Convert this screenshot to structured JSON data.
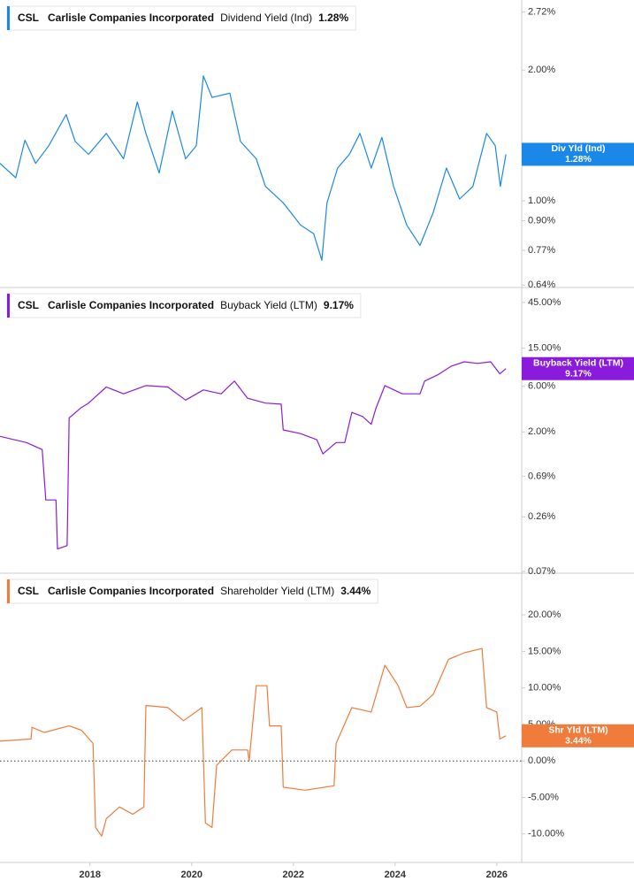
{
  "chart_data": [
    {
      "type": "line",
      "ticker": "CSL",
      "company": "Carlisle Companies Incorporated",
      "last_value": "1.28%",
      "tag_label": "Div Yld (Ind)",
      "tag_value": "1.28%",
      "log_scale": true,
      "xlim": [
        2016.23,
        2026.49
      ],
      "ylim": [
        0.632,
        2.9
      ],
      "yticks": [
        {
          "value": 0.64,
          "label": "0.64%"
        },
        {
          "value": 0.77,
          "label": "0.77%"
        },
        {
          "value": 0.9,
          "label": "0.90%"
        },
        {
          "value": 1,
          "label": "1.00%"
        },
        {
          "value": 2,
          "label": "2.00%"
        },
        {
          "value": 2.72,
          "label": "2.72%"
        }
      ],
      "x": [
        2016.23,
        2016.54,
        2016.72,
        2016.93,
        2017.19,
        2017.53,
        2017.71,
        2017.97,
        2018.32,
        2018.66,
        2018.93,
        2019.1,
        2019.36,
        2019.62,
        2019.88,
        2020.09,
        2020.23,
        2020.4,
        2020.75,
        2020.96,
        2021.27,
        2021.45,
        2021.8,
        2022.14,
        2022.4,
        2022.56,
        2022.66,
        2022.87,
        2023.1,
        2023.31,
        2023.53,
        2023.74,
        2023.97,
        2024.23,
        2024.49,
        2024.75,
        2025.01,
        2025.27,
        2025.53,
        2025.8,
        2025.97,
        2026.07,
        2026.18
      ],
      "series": [
        {
          "name": "Dividend Yield (Ind)",
          "color": "#1a88e8",
          "values": [
            1.22,
            1.13,
            1.38,
            1.22,
            1.34,
            1.58,
            1.37,
            1.28,
            1.43,
            1.25,
            1.69,
            1.43,
            1.16,
            1.61,
            1.25,
            1.34,
            1.94,
            1.73,
            1.77,
            1.37,
            1.25,
            1.08,
            0.99,
            0.88,
            0.84,
            0.73,
            0.99,
            1.19,
            1.28,
            1.43,
            1.19,
            1.4,
            1.08,
            0.88,
            0.79,
            0.94,
            1.19,
            1.01,
            1.08,
            1.43,
            1.34,
            1.08,
            1.28
          ]
        }
      ]
    },
    {
      "type": "line",
      "ticker": "CSL",
      "company": "Carlisle Companies Incorporated",
      "last_value": "9.17%",
      "tag_label": "Buyback Yield (LTM)",
      "tag_value": "9.17%",
      "log_scale": true,
      "xlim": [
        2016.23,
        2026.49
      ],
      "ylim": [
        0.067,
        64.5
      ],
      "yticks": [
        {
          "value": 0.07,
          "label": "0.07%"
        },
        {
          "value": 0.26,
          "label": "0.26%"
        },
        {
          "value": 0.69,
          "label": "0.69%"
        },
        {
          "value": 2,
          "label": "2.00%"
        },
        {
          "value": 6,
          "label": "6.00%"
        },
        {
          "value": 15,
          "label": "15.00%"
        },
        {
          "value": 45,
          "label": "45.00%"
        }
      ],
      "x": [
        2016.23,
        2016.75,
        2017.06,
        2017.13,
        2017.33,
        2017.36,
        2017.55,
        2017.59,
        2017.83,
        2017.97,
        2018.32,
        2018.66,
        2019.1,
        2019.53,
        2019.88,
        2020.23,
        2020.58,
        2020.84,
        2021.1,
        2021.45,
        2021.76,
        2021.8,
        2022.14,
        2022.46,
        2022.58,
        2022.84,
        2023.01,
        2023.15,
        2023.36,
        2023.53,
        2023.62,
        2023.8,
        2024.14,
        2024.49,
        2024.58,
        2024.84,
        2025.1,
        2025.36,
        2025.62,
        2025.88,
        2026.06,
        2026.18
      ],
      "series": [
        {
          "name": "Buyback Yield (LTM)",
          "color": "#8a1bdc",
          "values": [
            1.8,
            1.55,
            1.31,
            0.39,
            0.39,
            0.12,
            0.13,
            2.8,
            3.6,
            4.0,
            5.9,
            5.0,
            6.1,
            5.9,
            4.3,
            5.5,
            5.0,
            6.8,
            4.5,
            4.0,
            3.9,
            2.1,
            1.92,
            1.66,
            1.18,
            1.55,
            1.55,
            3.2,
            2.9,
            2.4,
            3.5,
            6.1,
            5.0,
            5.0,
            6.8,
            7.9,
            9.7,
            10.8,
            10.4,
            10.8,
            8.1,
            9.17
          ]
        }
      ]
    },
    {
      "type": "line",
      "ticker": "CSL",
      "company": "Carlisle Companies Incorporated",
      "last_value": "3.44%",
      "tag_label": "Shr Yld (LTM)",
      "tag_value": "3.44%",
      "log_scale": false,
      "zero_line": true,
      "xlim": [
        2016.23,
        2026.49
      ],
      "ylim": [
        -13.9,
        25.7
      ],
      "yticks": [
        {
          "value": -10,
          "label": "-10.00%"
        },
        {
          "value": -5,
          "label": "-5.00%"
        },
        {
          "value": 0,
          "label": "0.00%"
        },
        {
          "value": 5,
          "label": "5.00%"
        },
        {
          "value": 10,
          "label": "10.00%"
        },
        {
          "value": 15,
          "label": "15.00%"
        },
        {
          "value": 20,
          "label": "20.00%"
        }
      ],
      "xticks": [
        2018,
        2020,
        2022,
        2024,
        2026
      ],
      "x": [
        2016.23,
        2016.84,
        2016.86,
        2017.1,
        2017.59,
        2017.83,
        2018.06,
        2018.11,
        2018.23,
        2018.32,
        2018.58,
        2018.84,
        2019.06,
        2019.1,
        2019.53,
        2019.84,
        2020.2,
        2020.27,
        2020.4,
        2020.49,
        2020.79,
        2021.1,
        2021.13,
        2021.27,
        2021.48,
        2021.53,
        2021.76,
        2021.8,
        2022.23,
        2022.8,
        2022.84,
        2023.15,
        2023.53,
        2023.8,
        2024.06,
        2024.23,
        2024.49,
        2024.75,
        2025.05,
        2025.36,
        2025.71,
        2025.8,
        2026.0,
        2026.06,
        2026.18
      ],
      "series": [
        {
          "name": "Shareholder Yield (LTM)",
          "color": "#f07b3a",
          "values": [
            2.7,
            3.0,
            4.6,
            3.9,
            4.8,
            4.2,
            2.4,
            -9.1,
            -10.3,
            -7.9,
            -6.3,
            -7.3,
            -6.3,
            7.6,
            7.3,
            5.5,
            7.3,
            -8.5,
            -9.1,
            -0.6,
            1.5,
            1.5,
            0,
            10.3,
            10.3,
            4.8,
            4.8,
            -3.6,
            -4.0,
            -3.4,
            2.4,
            7.3,
            6.7,
            13.1,
            10.3,
            7.3,
            7.5,
            9.1,
            13.9,
            14.8,
            15.4,
            7.3,
            6.7,
            3.0,
            3.44
          ]
        }
      ]
    }
  ]
}
